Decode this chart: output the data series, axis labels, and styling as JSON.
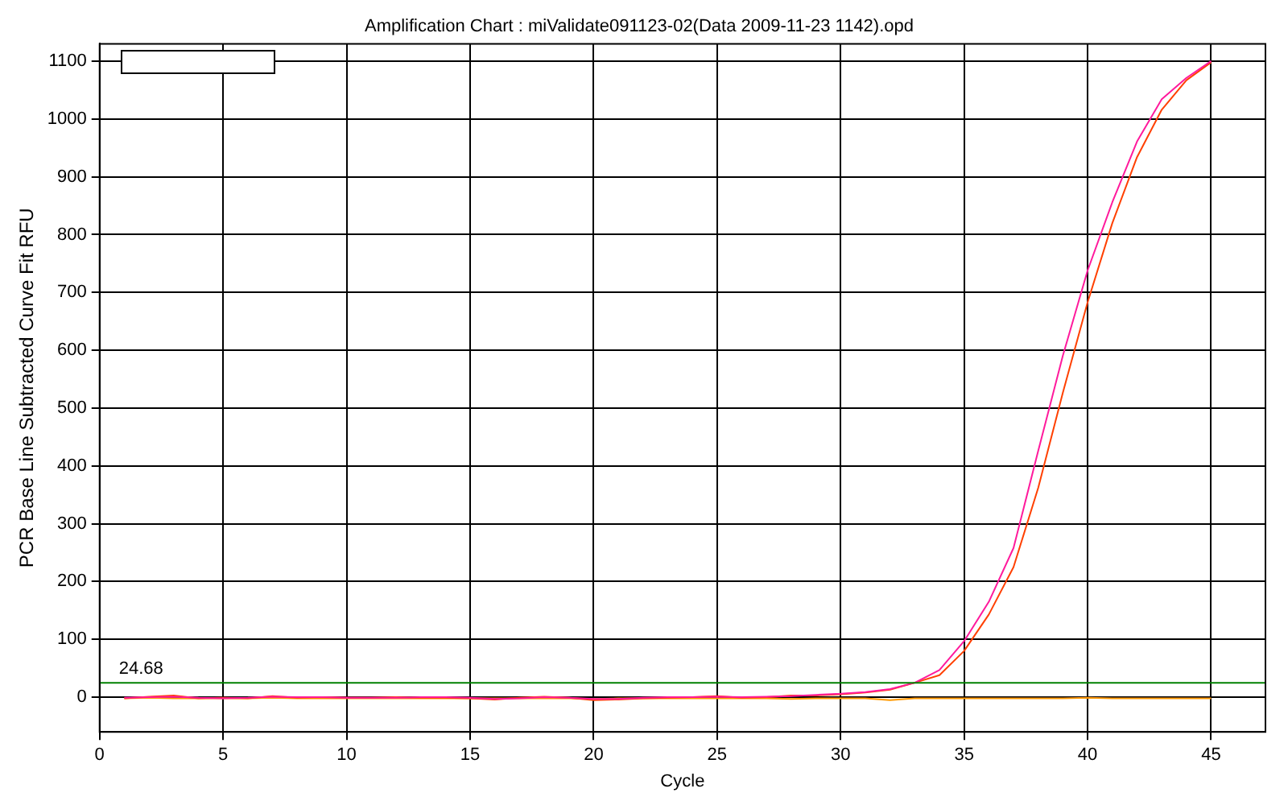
{
  "chart_data": {
    "type": "line",
    "title": "Amplification Chart : miValidate091123-02(Data 2009-11-23 1142).opd",
    "xlabel": "Cycle",
    "ylabel": "PCR Base Line Subtracted Curve Fit RFU",
    "x": [
      1,
      2,
      3,
      4,
      5,
      6,
      7,
      8,
      9,
      10,
      11,
      12,
      13,
      14,
      15,
      16,
      17,
      18,
      19,
      20,
      21,
      22,
      23,
      24,
      25,
      26,
      27,
      28,
      29,
      30,
      31,
      32,
      33,
      34,
      35,
      36,
      37,
      38,
      39,
      40,
      41,
      42,
      43,
      44,
      45
    ],
    "series": [
      {
        "color": "#ff1a9c",
        "values": [
          -1,
          0,
          1,
          -1,
          -2,
          -1,
          1,
          0,
          0,
          -1,
          -1,
          -1,
          0,
          0,
          -1,
          -3,
          -2,
          0,
          -1,
          -3,
          -3,
          -1,
          0,
          0,
          1,
          0,
          1,
          2,
          4,
          6,
          9,
          14,
          25,
          47,
          97,
          165,
          258,
          426,
          591,
          738,
          856,
          961,
          1034,
          1071,
          1100
        ]
      },
      {
        "color": "#ff4000",
        "values": [
          -2,
          1,
          3,
          -2,
          -1,
          -2,
          2,
          -1,
          0,
          -1,
          -1,
          0,
          -1,
          -1,
          -2,
          -4,
          -1,
          1,
          -1,
          -5,
          -4,
          -2,
          -1,
          0,
          2,
          -1,
          0,
          3,
          3,
          5,
          8,
          13,
          25,
          38,
          80,
          143,
          225,
          362,
          527,
          683,
          820,
          934,
          1016,
          1067,
          1098
        ]
      },
      {
        "color": "#ff9900",
        "values": [
          -2,
          -1,
          -2,
          -2,
          -2,
          -2,
          -1,
          -2,
          -2,
          -2,
          -2,
          -2,
          -2,
          -2,
          -2,
          -2,
          -2,
          -2,
          -2,
          -3,
          -2,
          -2,
          -2,
          -2,
          -2,
          -2,
          -2,
          -3,
          -2,
          -2,
          -2,
          -5,
          -2,
          -2,
          -2,
          -2,
          -2,
          -2,
          -2,
          -1,
          -2,
          -2,
          -2,
          -2,
          -2
        ]
      }
    ],
    "xlim": [
      0,
      47.2
    ],
    "xticks": [
      0,
      5,
      10,
      15,
      20,
      25,
      30,
      35,
      40,
      45
    ],
    "ylim": [
      -60,
      1130
    ],
    "yticks": [
      0,
      100,
      200,
      300,
      400,
      500,
      600,
      700,
      800,
      900,
      1000,
      1100
    ],
    "ref_lines": [
      {
        "axis": "y",
        "value": 24.68,
        "label": "24.68",
        "color": "#008000"
      }
    ],
    "grid": true,
    "legend": false,
    "marker": "none",
    "line_style": "solid"
  }
}
